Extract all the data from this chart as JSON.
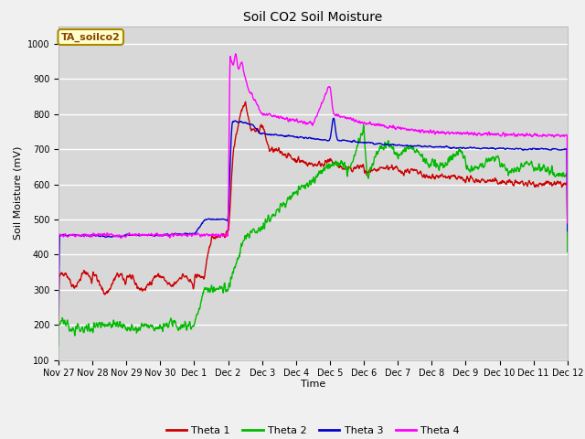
{
  "title": "Soil CO2 Soil Moisture",
  "ylabel": "Soil Moisture (mV)",
  "xlabel": "Time",
  "annotation": "TA_soilco2",
  "ylim": [
    100,
    1050
  ],
  "yticks": [
    100,
    200,
    300,
    400,
    500,
    600,
    700,
    800,
    900,
    1000
  ],
  "xtick_labels": [
    "Nov 27",
    "Nov 28",
    "Nov 29",
    "Nov 30",
    "Dec 1",
    "Dec 2",
    "Dec 3",
    "Dec 4",
    "Dec 5",
    "Dec 6",
    "Dec 7",
    "Dec 8",
    "Dec 9",
    "Dec 10",
    "Dec 11",
    "Dec 12"
  ],
  "colors": {
    "theta1": "#cc0000",
    "theta2": "#00bb00",
    "theta3": "#0000cc",
    "theta4": "#ff00ff"
  },
  "fig_bg_color": "#f0f0f0",
  "plot_bg_color": "#d8d8d8",
  "grid_color": "#ffffff",
  "annotation_bg": "#ffffcc",
  "annotation_border": "#aa8800",
  "annotation_text_color": "#884400",
  "linewidth": 1.0,
  "title_fontsize": 10,
  "tick_fontsize": 7,
  "axis_label_fontsize": 8
}
